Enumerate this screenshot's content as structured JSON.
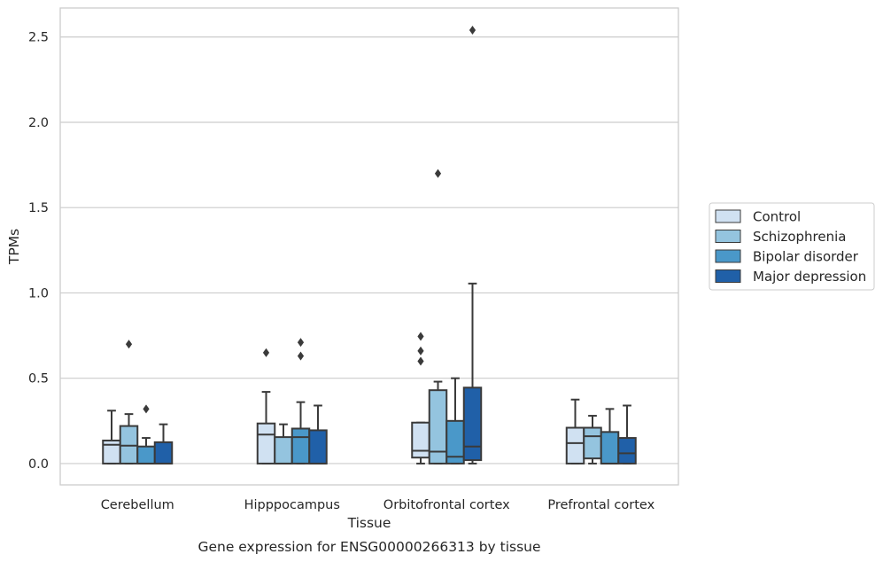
{
  "chart_data": {
    "type": "box",
    "title": "",
    "xlabel": "Tissue",
    "ylabel": "TPMs",
    "caption": "Gene expression for ENSG00000266313 by tissue",
    "ylim": [
      -0.125,
      2.67
    ],
    "yticks": [
      "0.0",
      "0.5",
      "1.0",
      "1.5",
      "2.0",
      "2.5"
    ],
    "grid": true,
    "legend_position": "right",
    "categories": [
      "Cerebellum",
      "Hipppocampus",
      "Orbitofrontal cortex",
      "Prefrontal cortex"
    ],
    "series": [
      {
        "name": "Control",
        "color": "#d0e1f2",
        "boxes": [
          {
            "q1": 0.0,
            "median": 0.11,
            "q3": 0.135,
            "whislo": 0.0,
            "whishi": 0.31,
            "fliers": []
          },
          {
            "q1": 0.0,
            "median": 0.17,
            "q3": 0.235,
            "whislo": 0.0,
            "whishi": 0.42,
            "fliers": [
              0.65
            ]
          },
          {
            "q1": 0.035,
            "median": 0.075,
            "q3": 0.24,
            "whislo": 0.0,
            "whishi": 0.24,
            "fliers": [
              0.6,
              0.66,
              0.745
            ]
          },
          {
            "q1": 0.0,
            "median": 0.12,
            "q3": 0.21,
            "whislo": 0.0,
            "whishi": 0.375,
            "fliers": []
          }
        ]
      },
      {
        "name": "Schizophrenia",
        "color": "#94c4df",
        "boxes": [
          {
            "q1": 0.0,
            "median": 0.105,
            "q3": 0.22,
            "whislo": 0.0,
            "whishi": 0.29,
            "fliers": [
              0.7
            ]
          },
          {
            "q1": 0.0,
            "median": 0.0,
            "q3": 0.155,
            "whislo": 0.0,
            "whishi": 0.23,
            "fliers": []
          },
          {
            "q1": 0.0,
            "median": 0.07,
            "q3": 0.43,
            "whislo": 0.0,
            "whishi": 0.48,
            "fliers": [
              1.7
            ]
          },
          {
            "q1": 0.03,
            "median": 0.16,
            "q3": 0.21,
            "whislo": 0.0,
            "whishi": 0.28,
            "fliers": []
          }
        ]
      },
      {
        "name": "Bipolar disorder",
        "color": "#4a98c9",
        "boxes": [
          {
            "q1": 0.0,
            "median": 0.0,
            "q3": 0.1,
            "whislo": 0.0,
            "whishi": 0.15,
            "fliers": [
              0.32
            ]
          },
          {
            "q1": 0.0,
            "median": 0.155,
            "q3": 0.205,
            "whislo": 0.0,
            "whishi": 0.36,
            "fliers": [
              0.63,
              0.71
            ]
          },
          {
            "q1": 0.0,
            "median": 0.04,
            "q3": 0.25,
            "whislo": 0.0,
            "whishi": 0.5,
            "fliers": []
          },
          {
            "q1": 0.0,
            "median": 0.0,
            "q3": 0.185,
            "whislo": 0.0,
            "whishi": 0.32,
            "fliers": []
          }
        ]
      },
      {
        "name": "Major depression",
        "color": "#2060a8",
        "boxes": [
          {
            "q1": 0.0,
            "median": 0.0,
            "q3": 0.125,
            "whislo": 0.0,
            "whishi": 0.23,
            "fliers": []
          },
          {
            "q1": 0.0,
            "median": 0.0,
            "q3": 0.195,
            "whislo": 0.0,
            "whishi": 0.34,
            "fliers": []
          },
          {
            "q1": 0.02,
            "median": 0.1,
            "q3": 0.445,
            "whislo": 0.0,
            "whishi": 1.055,
            "fliers": [
              2.54
            ]
          },
          {
            "q1": 0.0,
            "median": 0.06,
            "q3": 0.15,
            "whislo": 0.0,
            "whishi": 0.34,
            "fliers": []
          }
        ]
      }
    ]
  }
}
